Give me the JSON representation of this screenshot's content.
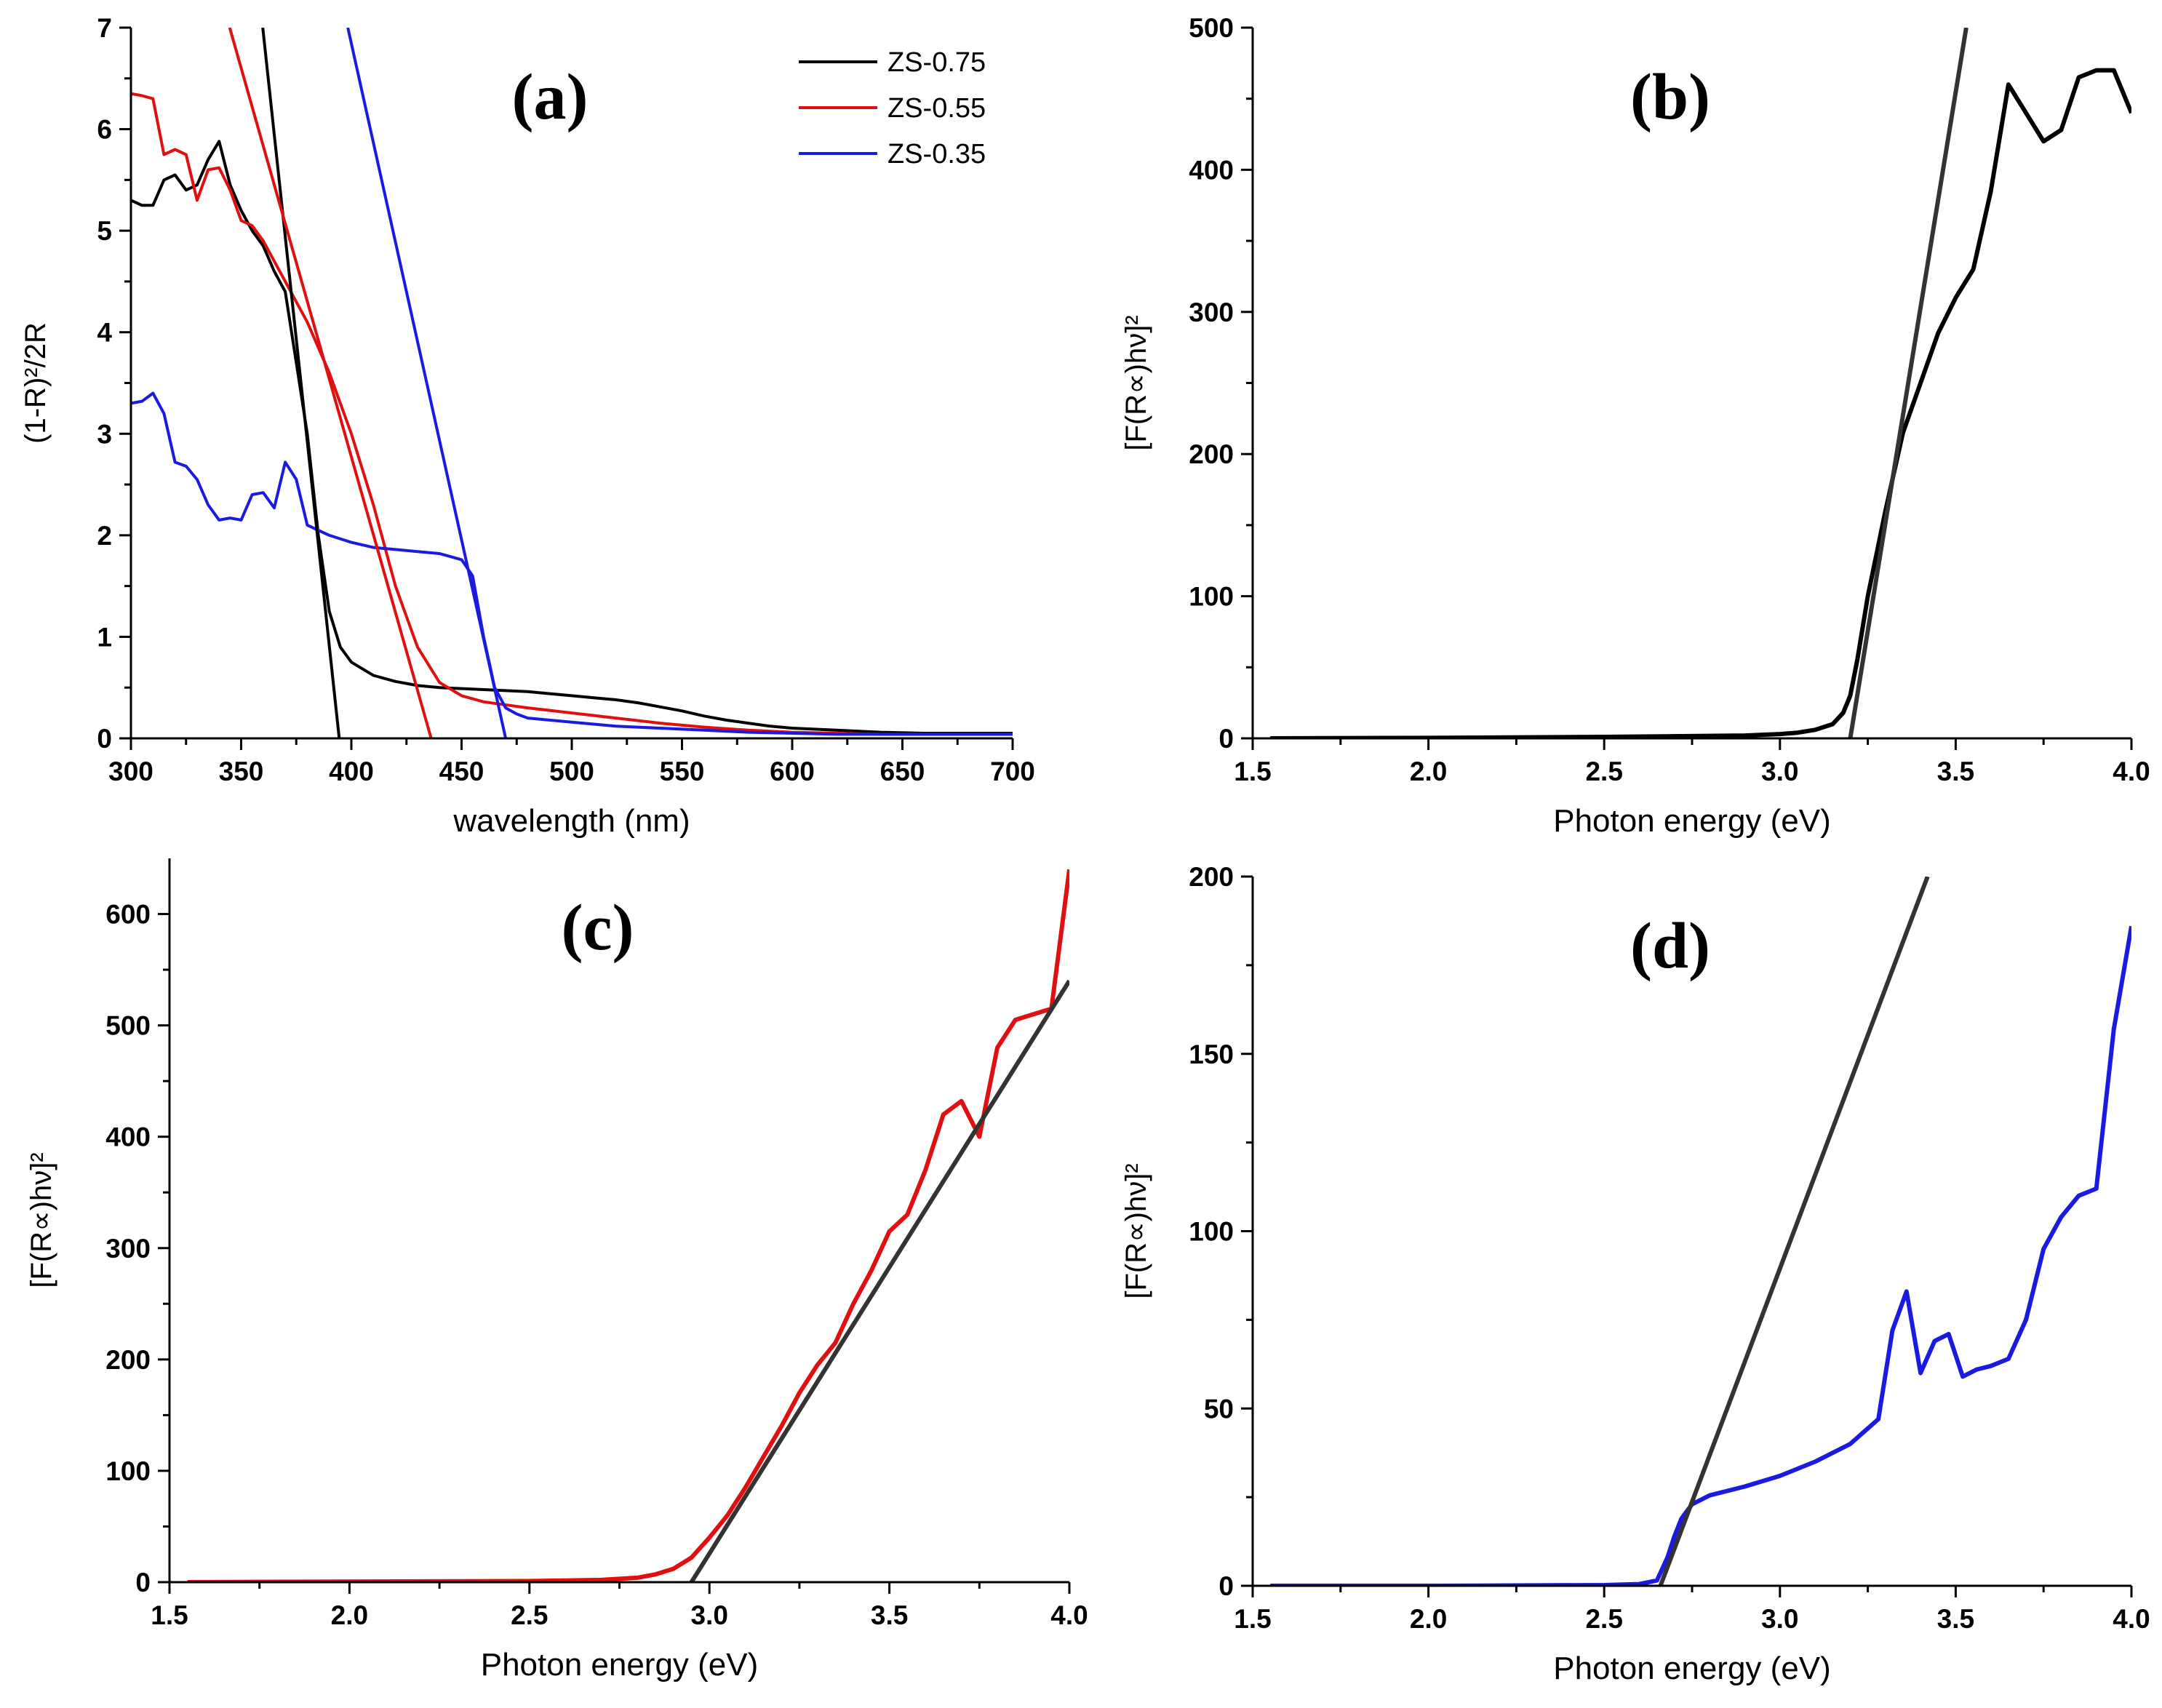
{
  "chart_data": [
    {
      "type": "line",
      "title": "(a)",
      "xlabel": "wavelength (nm)",
      "ylabel": "(1-R)²/2R",
      "xlim": [
        300,
        700
      ],
      "ylim": [
        0,
        7
      ],
      "xticks": [
        300,
        350,
        400,
        450,
        500,
        550,
        600,
        650,
        700
      ],
      "xtick_labels": [
        "300",
        "350",
        "400",
        "450",
        "500",
        "550",
        "600",
        "650",
        "700"
      ],
      "yticks": [
        0,
        1,
        2,
        3,
        4,
        5,
        6,
        7
      ],
      "ytick_labels": [
        "0",
        "1",
        "2",
        "3",
        "4",
        "5",
        "6",
        "7"
      ],
      "legend_position": "top-right",
      "series": [
        {
          "name": "ZS-0.75",
          "color": "#000000",
          "x": [
            300,
            305,
            310,
            315,
            320,
            325,
            330,
            335,
            340,
            345,
            350,
            355,
            360,
            365,
            370,
            375,
            380,
            385,
            390,
            395,
            400,
            410,
            420,
            430,
            440,
            450,
            460,
            470,
            480,
            490,
            500,
            510,
            520,
            530,
            540,
            550,
            560,
            570,
            580,
            590,
            600,
            620,
            640,
            660,
            680,
            700
          ],
          "y": [
            5.3,
            5.25,
            5.25,
            5.5,
            5.55,
            5.4,
            5.45,
            5.7,
            5.88,
            5.45,
            5.2,
            5.0,
            4.85,
            4.6,
            4.4,
            3.7,
            3.0,
            2.0,
            1.25,
            0.9,
            0.75,
            0.62,
            0.56,
            0.52,
            0.5,
            0.49,
            0.48,
            0.47,
            0.46,
            0.44,
            0.42,
            0.4,
            0.38,
            0.35,
            0.31,
            0.27,
            0.22,
            0.18,
            0.15,
            0.12,
            0.1,
            0.08,
            0.06,
            0.05,
            0.05,
            0.05
          ]
        },
        {
          "name": "ZS-0.55",
          "color": "#e01010",
          "x": [
            300,
            305,
            310,
            315,
            320,
            325,
            330,
            335,
            340,
            345,
            350,
            355,
            360,
            370,
            380,
            390,
            400,
            410,
            420,
            430,
            440,
            450,
            460,
            480,
            500,
            520,
            540,
            560,
            580,
            600,
            620,
            640,
            660,
            680,
            700
          ],
          "y": [
            6.35,
            6.33,
            6.3,
            5.75,
            5.8,
            5.75,
            5.3,
            5.6,
            5.62,
            5.4,
            5.1,
            5.05,
            4.9,
            4.5,
            4.1,
            3.6,
            3.0,
            2.3,
            1.5,
            0.9,
            0.55,
            0.42,
            0.36,
            0.3,
            0.25,
            0.2,
            0.15,
            0.11,
            0.08,
            0.06,
            0.05,
            0.04,
            0.04,
            0.04,
            0.04
          ]
        },
        {
          "name": "ZS-0.35",
          "color": "#1a1ae0",
          "x": [
            300,
            305,
            310,
            315,
            320,
            325,
            330,
            335,
            340,
            345,
            350,
            355,
            360,
            365,
            370,
            375,
            380,
            390,
            400,
            410,
            420,
            430,
            440,
            450,
            455,
            460,
            465,
            470,
            475,
            480,
            500,
            520,
            540,
            560,
            580,
            600,
            620,
            640,
            660,
            680,
            700
          ],
          "y": [
            3.3,
            3.32,
            3.4,
            3.2,
            2.72,
            2.68,
            2.55,
            2.3,
            2.15,
            2.17,
            2.15,
            2.4,
            2.42,
            2.27,
            2.72,
            2.55,
            2.1,
            2.0,
            1.93,
            1.88,
            1.86,
            1.84,
            1.82,
            1.76,
            1.6,
            1.0,
            0.5,
            0.3,
            0.24,
            0.2,
            0.16,
            0.12,
            0.1,
            0.08,
            0.06,
            0.05,
            0.04,
            0.04,
            0.04,
            0.04,
            0.04
          ]
        }
      ],
      "fit_lines": [
        {
          "color": "#000000",
          "x": [
            359.8,
            394.5
          ],
          "y": [
            7,
            0
          ]
        },
        {
          "color": "#e01010",
          "x": [
            344.8,
            436.2
          ],
          "y": [
            7,
            0
          ]
        },
        {
          "color": "#1a1ae0",
          "x": [
            398.4,
            470.0
          ],
          "y": [
            7,
            0
          ]
        }
      ]
    },
    {
      "type": "line",
      "title": "(b)",
      "xlabel": "Photon energy (eV)",
      "ylabel": "[F(R∝)hν]²",
      "xlim": [
        1.5,
        4.0
      ],
      "ylim": [
        0,
        500
      ],
      "xticks": [
        1.5,
        2.0,
        2.5,
        3.0,
        3.5,
        4.0
      ],
      "xtick_labels": [
        "1.5",
        "2.0",
        "2.5",
        "3.0",
        "3.5",
        "4.0"
      ],
      "yticks": [
        0,
        100,
        200,
        300,
        400,
        500
      ],
      "ytick_labels": [
        "0",
        "100",
        "200",
        "300",
        "400",
        "500"
      ],
      "series": [
        {
          "color": "#000000",
          "x": [
            1.55,
            2.0,
            2.5,
            2.9,
            3.0,
            3.05,
            3.1,
            3.15,
            3.18,
            3.2,
            3.22,
            3.25,
            3.3,
            3.35,
            3.4,
            3.45,
            3.5,
            3.55,
            3.6,
            3.65,
            3.7,
            3.75,
            3.8,
            3.85,
            3.9,
            3.95,
            4.0
          ],
          "y": [
            0,
            0.3,
            1,
            2,
            3,
            4,
            6,
            10,
            18,
            30,
            55,
            100,
            160,
            215,
            250,
            285,
            310,
            330,
            385,
            460,
            440,
            420,
            428,
            465,
            470,
            470,
            440
          ]
        }
      ],
      "fit_lines": [
        {
          "color": "#333333",
          "x": [
            3.2,
            3.53
          ],
          "y": [
            0,
            500
          ]
        }
      ]
    },
    {
      "type": "line",
      "title": "(c)",
      "xlabel": "Photon energy (eV)",
      "ylabel": "[F(R∝)hν]²",
      "xlim": [
        1.5,
        4.0
      ],
      "ylim": [
        0,
        650
      ],
      "xticks": [
        1.5,
        2.0,
        2.5,
        3.0,
        3.5,
        4.0
      ],
      "xtick_labels": [
        "1.5",
        "2.0",
        "2.5",
        "3.0",
        "3.5",
        "4.0"
      ],
      "yticks": [
        0,
        100,
        200,
        300,
        400,
        500,
        600
      ],
      "ytick_labels": [
        "0",
        "100",
        "200",
        "300",
        "400",
        "500",
        "600"
      ],
      "series": [
        {
          "color": "#e01010",
          "x": [
            1.55,
            2.0,
            2.5,
            2.7,
            2.8,
            2.85,
            2.9,
            2.95,
            3.0,
            3.05,
            3.1,
            3.2,
            3.25,
            3.3,
            3.35,
            3.4,
            3.45,
            3.5,
            3.55,
            3.6,
            3.65,
            3.7,
            3.75,
            3.8,
            3.85,
            3.9,
            3.95,
            4.0
          ],
          "y": [
            0,
            0.5,
            1,
            2,
            4,
            7,
            12,
            22,
            40,
            60,
            85,
            140,
            170,
            195,
            215,
            250,
            280,
            315,
            330,
            370,
            420,
            432,
            400,
            480,
            505,
            510,
            515,
            640
          ]
        }
      ],
      "fit_lines": [
        {
          "color": "#333333",
          "x": [
            2.95,
            4.0
          ],
          "y": [
            0,
            540
          ]
        }
      ]
    },
    {
      "type": "line",
      "title": "(d)",
      "xlabel": "Photon energy (eV)",
      "ylabel": "[F(R∝)hν]²",
      "xlim": [
        1.5,
        4.0
      ],
      "ylim": [
        0,
        200
      ],
      "xticks": [
        1.5,
        2.0,
        2.5,
        3.0,
        3.5,
        4.0
      ],
      "xtick_labels": [
        "1.5",
        "2.0",
        "2.5",
        "3.0",
        "3.5",
        "4.0"
      ],
      "yticks": [
        0,
        50,
        100,
        150,
        200
      ],
      "ytick_labels": [
        "0",
        "50",
        "100",
        "150",
        "200"
      ],
      "series": [
        {
          "color": "#1a1ae0",
          "x": [
            1.55,
            2.0,
            2.5,
            2.6,
            2.65,
            2.68,
            2.7,
            2.72,
            2.75,
            2.8,
            2.9,
            3.0,
            3.1,
            3.2,
            3.28,
            3.32,
            3.36,
            3.4,
            3.44,
            3.48,
            3.52,
            3.56,
            3.6,
            3.65,
            3.7,
            3.75,
            3.8,
            3.85,
            3.9,
            3.95,
            4.0
          ],
          "y": [
            0,
            0,
            0.2,
            0.5,
            1.5,
            8,
            14,
            19,
            23,
            25.5,
            28,
            31,
            35,
            40,
            47,
            72,
            83,
            60,
            69,
            71,
            59,
            61,
            62,
            64,
            75,
            95,
            104,
            110,
            112,
            157,
            186
          ]
        }
      ],
      "fit_lines": [
        {
          "color": "#333333",
          "x": [
            2.66,
            3.42
          ],
          "y": [
            0,
            200
          ]
        }
      ]
    }
  ]
}
